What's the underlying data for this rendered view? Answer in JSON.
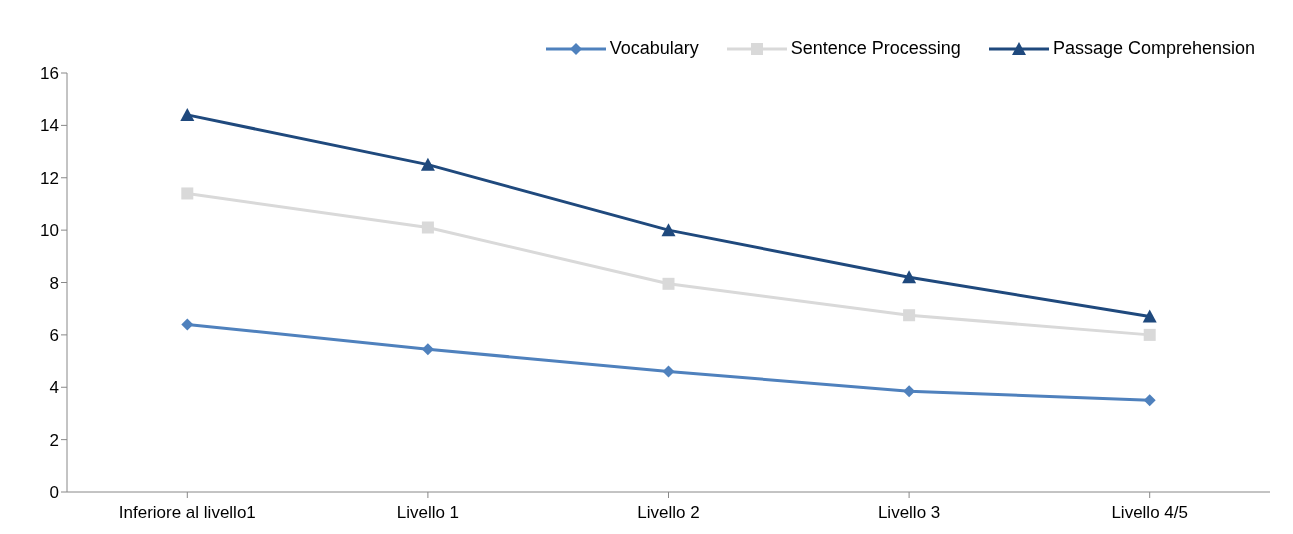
{
  "chart_data": {
    "type": "line",
    "categories": [
      "Inferiore al livello1",
      "Livello 1",
      "Livello 2",
      "Livello 3",
      "Livello 4/5"
    ],
    "series": [
      {
        "name": "Vocabulary",
        "color": "#4f81bd",
        "marker": "diamond",
        "values": [
          6.4,
          5.45,
          4.6,
          3.85,
          3.5
        ]
      },
      {
        "name": "Sentence Processing",
        "color": "#d9d9d9",
        "marker": "square",
        "values": [
          11.4,
          10.1,
          7.95,
          6.75,
          6.0
        ]
      },
      {
        "name": "Passage Comprehension",
        "color": "#1f497d",
        "marker": "triangle",
        "values": [
          14.4,
          12.5,
          10.0,
          8.2,
          6.7
        ]
      }
    ],
    "ylim": [
      0,
      16
    ],
    "yticks": [
      0,
      2,
      4,
      6,
      8,
      10,
      12,
      14,
      16
    ],
    "grid": false,
    "legend": "top right",
    "line_style": "solid"
  }
}
